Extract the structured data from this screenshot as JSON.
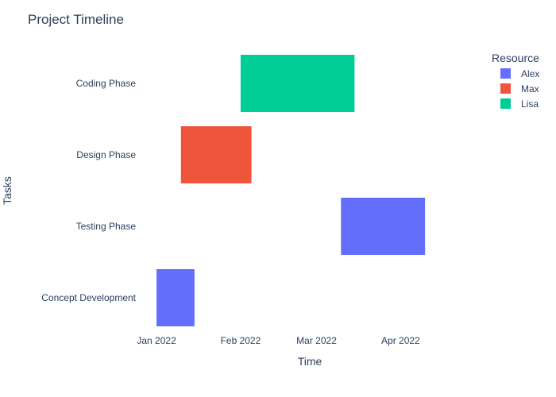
{
  "chart_data": {
    "type": "bar",
    "orientation": "horizontal-timeline",
    "title": "Project Timeline",
    "xlabel": "Time",
    "ylabel": "Tasks",
    "x_type": "date",
    "xlim": [
      "2021-12-27",
      "2022-04-29"
    ],
    "x_ticks": [
      {
        "date": "2022-01-01",
        "label": "Jan 2022"
      },
      {
        "date": "2022-02-01",
        "label": "Feb 2022"
      },
      {
        "date": "2022-03-01",
        "label": "Mar 2022"
      },
      {
        "date": "2022-04-01",
        "label": "Apr 2022"
      }
    ],
    "categories": [
      "Concept Development",
      "Testing Phase",
      "Design Phase",
      "Coding Phase"
    ],
    "legend": {
      "title": "Resource",
      "position": "top-right"
    },
    "grid": false,
    "series": [
      {
        "name": "Alex",
        "color": "#636efa",
        "tasks": [
          {
            "task": "Concept Development",
            "start": "2022-01-01",
            "end": "2022-01-15"
          },
          {
            "task": "Testing Phase",
            "start": "2022-03-10",
            "end": "2022-04-10"
          }
        ]
      },
      {
        "name": "Max",
        "color": "#ef553b",
        "tasks": [
          {
            "task": "Design Phase",
            "start": "2022-01-10",
            "end": "2022-02-05"
          }
        ]
      },
      {
        "name": "Lisa",
        "color": "#00cc96",
        "tasks": [
          {
            "task": "Coding Phase",
            "start": "2022-02-01",
            "end": "2022-03-15"
          }
        ]
      }
    ]
  }
}
